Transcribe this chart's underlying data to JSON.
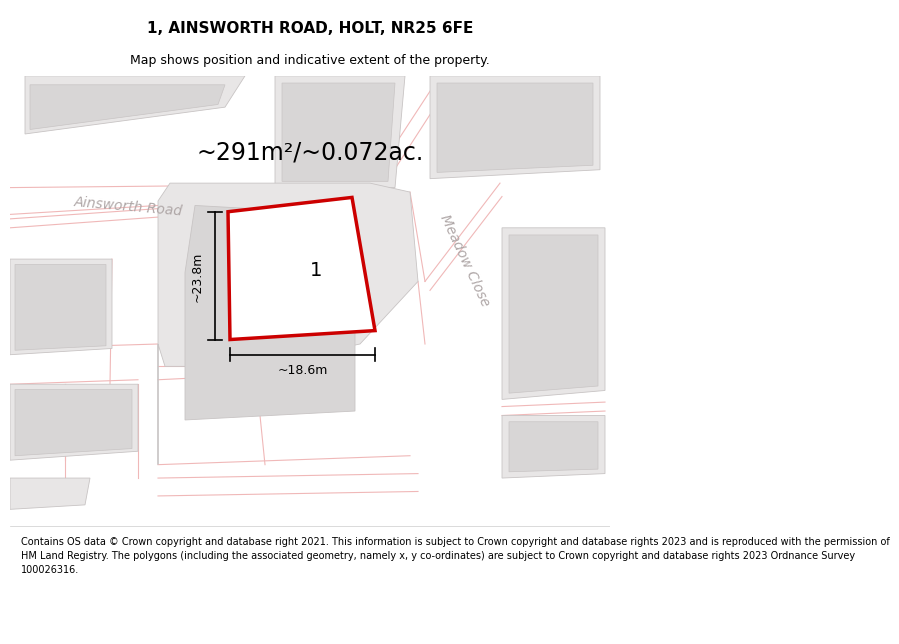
{
  "title": "1, AINSWORTH ROAD, HOLT, NR25 6FE",
  "subtitle": "Map shows position and indicative extent of the property.",
  "area_label": "~291m²/~0.072ac.",
  "plot_number": "1",
  "dim_width": "~18.6m",
  "dim_height": "~23.8m",
  "road_label1": "Ainsworth Road",
  "road_label2": "Meadow Close",
  "footer_lines": [
    "Contains OS data © Crown copyright and database right 2021. This information is subject to Crown copyright and database rights 2023 and is reproduced with the permission of",
    "HM Land Registry. The polygons (including the associated geometry, namely x, y co-ordinates) are subject to Crown copyright and database rights 2023 Ordnance Survey",
    "100026316."
  ],
  "map_bg": "#f7f5f5",
  "block_outer_color": "#e8e6e6",
  "block_inner_color": "#d8d6d6",
  "road_line_color": "#f0b8b8",
  "plot_color": "#cc0000",
  "dim_color": "#000000",
  "road_label_color": "#b0a8a8",
  "area_fontsize": 17,
  "road_label_fontsize": 10,
  "plot_num_fontsize": 14,
  "dim_fontsize": 9,
  "footer_fontsize": 7
}
